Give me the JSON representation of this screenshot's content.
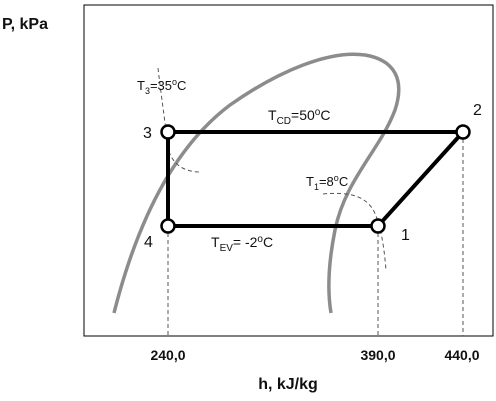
{
  "axes": {
    "y_label": "P, kPa",
    "x_label": "h, kJ/kg"
  },
  "x_ticks": [
    "240,0",
    "390,0",
    "440,0"
  ],
  "states": [
    "1",
    "2",
    "3",
    "4"
  ],
  "annotations": {
    "t3": {
      "main": "T",
      "sub": "3",
      "rest": "=35",
      "sup": "o",
      "unit": "C"
    },
    "tcd": {
      "main": "T",
      "sub": "CD",
      "rest": "=50",
      "sup": "o",
      "unit": "C"
    },
    "t1": {
      "main": "T",
      "sub": "1",
      "rest": "=8",
      "sup": "o",
      "unit": "C"
    },
    "tev": {
      "main": "T",
      "sub": "EV",
      "rest": "= -2",
      "sup": "o",
      "unit": "C"
    }
  },
  "colors": {
    "cycle": "#000000",
    "dome": "#8c8c8c",
    "guides": "#555555",
    "frame": "#000000"
  }
}
